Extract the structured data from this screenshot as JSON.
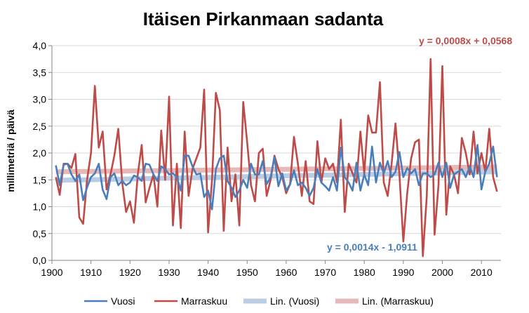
{
  "chart_data": {
    "type": "line",
    "title": "Itäisen Pirkanmaan sadanta",
    "xlabel": "",
    "ylabel": "millimetriä / päivä",
    "xlim": [
      1900,
      2015
    ],
    "ylim": [
      0,
      4.0
    ],
    "x_ticks": [
      "1900",
      "1910",
      "1920",
      "1930",
      "1940",
      "1950",
      "1960",
      "1970",
      "1980",
      "1990",
      "2000",
      "2010"
    ],
    "y_ticks": [
      "0,0",
      "0,5",
      "1,0",
      "1,5",
      "2,0",
      "2,5",
      "3,0",
      "3,5",
      "4,0"
    ],
    "grid": "horizontal",
    "legend_position": "bottom",
    "colors": {
      "vuosi": "#4a7ebb",
      "marraskuu": "#be4b48",
      "lin_vuosi": "#b9cde5",
      "lin_marraskuu": "#e6b9b8",
      "vuosi_eq": "#4a7ebb",
      "marraskuu_eq": "#be4b48"
    },
    "series": [
      {
        "name": "Vuosi",
        "x": [
          1901,
          1902,
          1903,
          1904,
          1905,
          1906,
          1907,
          1908,
          1909,
          1910,
          1911,
          1912,
          1913,
          1914,
          1915,
          1916,
          1917,
          1918,
          1919,
          1920,
          1921,
          1922,
          1923,
          1924,
          1925,
          1926,
          1927,
          1928,
          1929,
          1930,
          1931,
          1932,
          1933,
          1934,
          1935,
          1936,
          1937,
          1938,
          1939,
          1940,
          1941,
          1942,
          1943,
          1944,
          1945,
          1946,
          1947,
          1948,
          1949,
          1950,
          1951,
          1952,
          1953,
          1954,
          1955,
          1956,
          1957,
          1958,
          1959,
          1960,
          1961,
          1962,
          1963,
          1964,
          1965,
          1966,
          1967,
          1968,
          1969,
          1970,
          1971,
          1972,
          1973,
          1974,
          1975,
          1976,
          1977,
          1978,
          1979,
          1980,
          1981,
          1982,
          1983,
          1984,
          1985,
          1986,
          1987,
          1988,
          1989,
          1990,
          1991,
          1992,
          1993,
          1994,
          1995,
          1996,
          1997,
          1998,
          1999,
          2000,
          2001,
          2002,
          2003,
          2004,
          2005,
          2006,
          2007,
          2008,
          2009,
          2010,
          2011,
          2012,
          2013,
          2014
        ],
        "values": [
          1.77,
          1.4,
          1.78,
          1.8,
          1.6,
          1.48,
          1.6,
          1.12,
          1.36,
          1.55,
          1.62,
          1.8,
          1.32,
          1.14,
          1.55,
          1.62,
          1.4,
          1.48,
          1.4,
          1.45,
          1.58,
          1.55,
          1.48,
          1.8,
          1.78,
          1.6,
          1.48,
          1.75,
          1.7,
          1.6,
          1.62,
          1.55,
          1.3,
          1.95,
          1.95,
          1.75,
          1.6,
          1.62,
          1.18,
          1.3,
          0.95,
          1.7,
          1.9,
          1.95,
          1.48,
          1.35,
          1.18,
          1.3,
          1.5,
          1.35,
          1.8,
          1.6,
          1.6,
          1.85,
          1.42,
          1.55,
          1.92,
          1.38,
          1.62,
          1.3,
          1.42,
          1.68,
          1.4,
          1.45,
          1.35,
          1.2,
          1.35,
          1.7,
          1.45,
          1.38,
          1.3,
          1.55,
          1.3,
          2.1,
          1.55,
          1.45,
          1.3,
          1.82,
          1.3,
          1.6,
          1.4,
          2.12,
          1.45,
          1.82,
          1.62,
          1.85,
          1.55,
          1.65,
          2.02,
          1.55,
          1.72,
          1.62,
          1.7,
          1.4,
          1.62,
          1.62,
          1.55,
          1.6,
          1.82,
          1.55,
          1.82,
          1.35,
          1.6,
          1.65,
          1.7,
          1.55,
          1.75,
          1.55,
          2.15,
          1.32,
          1.65,
          1.8,
          2.12,
          1.55
        ],
        "color": "#4a7ebb"
      },
      {
        "name": "Marraskuu",
        "x": [
          1901,
          1902,
          1903,
          1904,
          1905,
          1906,
          1907,
          1908,
          1909,
          1910,
          1911,
          1912,
          1913,
          1914,
          1915,
          1916,
          1917,
          1918,
          1919,
          1920,
          1921,
          1922,
          1923,
          1924,
          1925,
          1926,
          1927,
          1928,
          1929,
          1930,
          1931,
          1932,
          1933,
          1934,
          1935,
          1936,
          1937,
          1938,
          1939,
          1940,
          1941,
          1942,
          1943,
          1944,
          1945,
          1946,
          1947,
          1948,
          1949,
          1950,
          1951,
          1952,
          1953,
          1954,
          1955,
          1956,
          1957,
          1958,
          1959,
          1960,
          1961,
          1962,
          1963,
          1964,
          1965,
          1966,
          1967,
          1968,
          1969,
          1970,
          1971,
          1972,
          1973,
          1974,
          1975,
          1976,
          1977,
          1978,
          1979,
          1980,
          1981,
          1982,
          1983,
          1984,
          1985,
          1986,
          1987,
          1988,
          1989,
          1990,
          1991,
          1992,
          1993,
          1994,
          1995,
          1996,
          1997,
          1998,
          1999,
          2000,
          2001,
          2002,
          2003,
          2004,
          2005,
          2006,
          2007,
          2008,
          2009,
          2010,
          2011,
          2012,
          2013,
          2014
        ],
        "values": [
          1.55,
          1.22,
          1.8,
          1.8,
          1.72,
          1.98,
          0.8,
          0.68,
          1.5,
          2.0,
          3.25,
          2.1,
          2.4,
          1.32,
          1.6,
          1.95,
          2.45,
          1.45,
          0.9,
          1.1,
          0.7,
          1.6,
          2.15,
          1.08,
          1.35,
          1.6,
          1.0,
          2.42,
          1.5,
          3.05,
          0.65,
          1.8,
          0.6,
          2.4,
          1.2,
          1.7,
          1.9,
          2.1,
          3.18,
          0.52,
          1.5,
          3.12,
          2.8,
          0.55,
          2.1,
          1.1,
          1.6,
          0.65,
          2.95,
          2.2,
          1.4,
          1.1,
          2.0,
          2.08,
          1.2,
          1.5,
          1.95,
          1.7,
          1.55,
          1.25,
          1.42,
          2.3,
          1.8,
          1.2,
          1.85,
          1.1,
          1.05,
          2.22,
          1.45,
          1.9,
          1.7,
          1.8,
          1.45,
          2.62,
          0.9,
          1.8,
          1.62,
          1.45,
          2.4,
          1.62,
          2.7,
          2.38,
          2.38,
          3.32,
          1.45,
          1.2,
          1.8,
          2.55,
          1.6,
          0.35,
          1.25,
          1.9,
          2.2,
          2.25,
          0.08,
          1.2,
          3.75,
          0.48,
          1.4,
          3.62,
          0.85,
          1.75,
          1.6,
          1.25,
          2.28,
          2.0,
          1.6,
          2.4,
          1.62,
          2.0,
          1.65,
          2.45,
          1.55,
          1.28
        ],
        "color": "#be4b48"
      },
      {
        "name": "Lin. (Vuosi)",
        "x": [
          1901,
          2014
        ],
        "values": [
          1.49,
          1.65
        ],
        "color": "#b9cde5"
      },
      {
        "name": "Lin. (Marraskuu)",
        "x": [
          1901,
          2014
        ],
        "values": [
          1.65,
          1.74
        ],
        "color": "#e6b9b8"
      }
    ],
    "annotations": [
      {
        "text": "y = 0,0008x + 0,0568",
        "series": "Marraskuu"
      },
      {
        "text": "y = 0,0014x - 1,0911",
        "series": "Vuosi"
      }
    ]
  }
}
